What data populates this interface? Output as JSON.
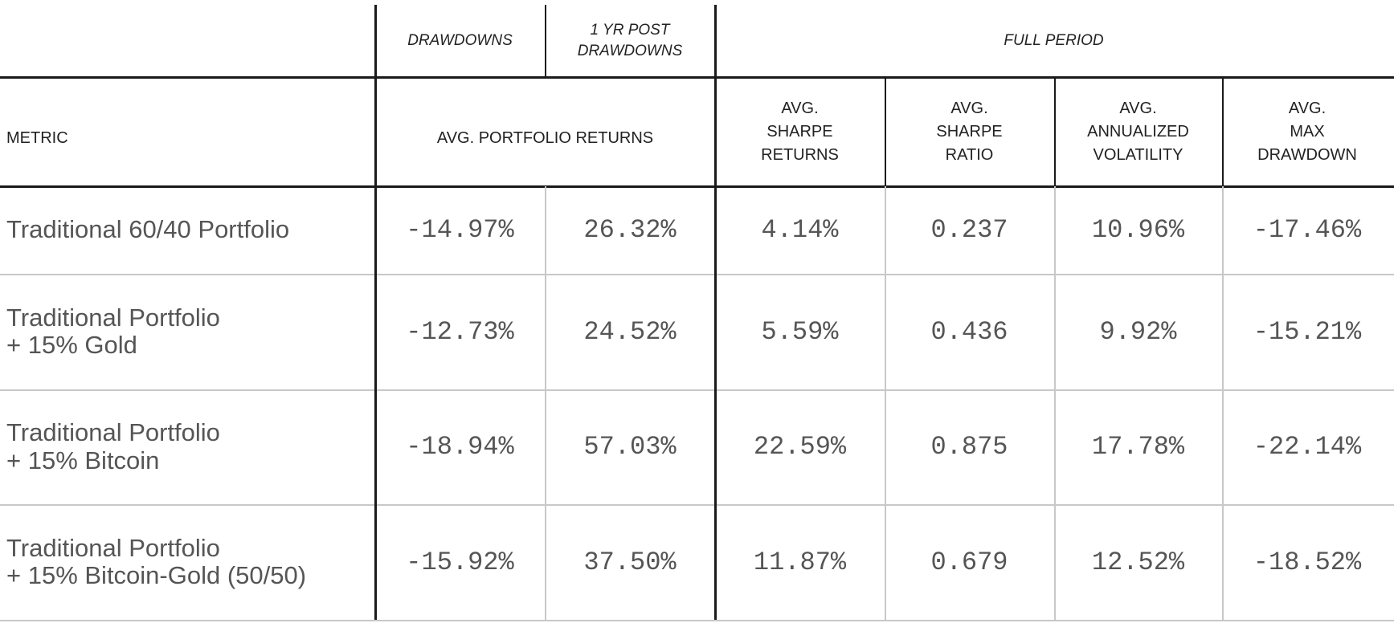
{
  "header": {
    "group_row": [
      "DRAWDOWNS",
      "1 YR POST\nDRAWDOWNS",
      "FULL PERIOD"
    ],
    "column_row": [
      "METRIC",
      "AVG. PORTFOLIO RETURNS",
      "AVG.\nSHARPE\nRETURNS",
      "AVG.\nSHARPE\nRATIO",
      "AVG.\nANNUALIZED\nVOLATILITY",
      "AVG.\nMAX\nDRAWDOWN"
    ]
  },
  "table": {
    "rows": [
      [
        "Traditional 60/40 Portfolio",
        "-14.97%",
        "26.32%",
        "4.14%",
        "0.237",
        "10.96%",
        "-17.46%"
      ],
      [
        "Traditional Portfolio\n+ 15%  Gold",
        "-12.73%",
        "24.52%",
        "5.59%",
        "0.436",
        "9.92%",
        "-15.21%"
      ],
      [
        "Traditional Portfolio\n+ 15% Bitcoin",
        "-18.94%",
        "57.03%",
        "22.59%",
        "0.875",
        "17.78%",
        "-22.14%"
      ],
      [
        "Traditional Portfolio\n+ 15% Bitcoin-Gold (50/50)",
        "-15.92%",
        "37.50%",
        "11.87%",
        "0.679",
        "12.52%",
        "-18.52%"
      ]
    ]
  }
}
